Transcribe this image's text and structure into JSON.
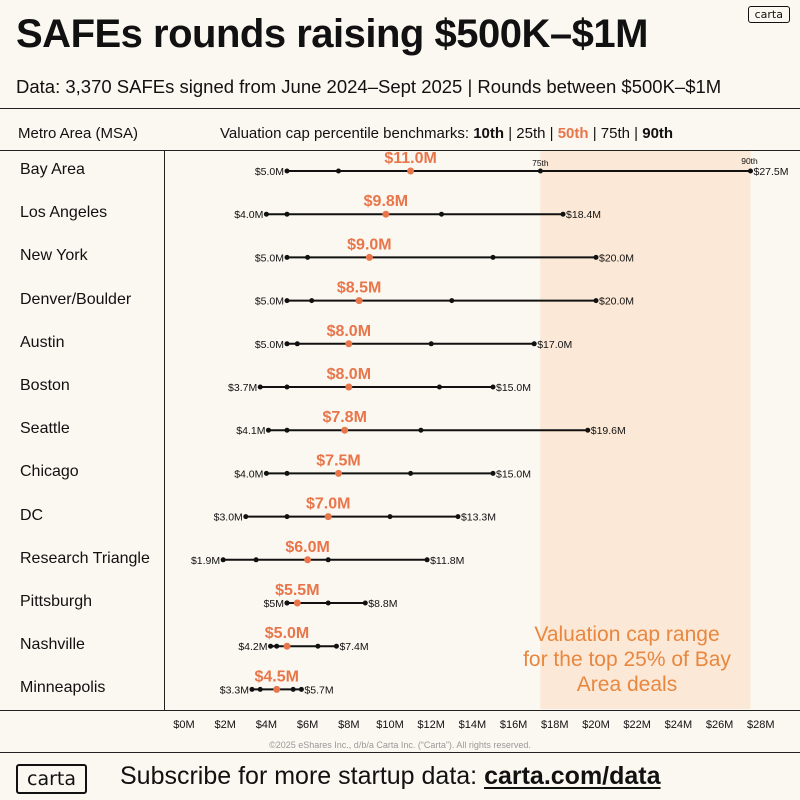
{
  "logo_text": "carta",
  "title": "SAFEs rounds raising $500K–$1M",
  "subtitle": "Data: 3,370 SAFEs signed from June 2024–Sept 2025 | Rounds between $500K–$1M",
  "header": {
    "left": "Metro Area (MSA)",
    "right_prefix": "Valuation cap percentile benchmarks: ",
    "p10": "10th",
    "p25": "25th",
    "p50": "50th",
    "p75": "75th",
    "p90": "90th",
    "sep": " | "
  },
  "shade_note": "Valuation cap range for the top 25% of Bay Area deals",
  "copyright": "©2025 eShares Inc., d/b/a Carta Inc. (“Carta”). All rights reserved.",
  "footer": {
    "logo_text": "carta",
    "text": "Subscribe for more startup data: ",
    "url": "carta.com/data"
  },
  "colors": {
    "accent": "#e8764a",
    "shade": "#fce3cf",
    "ink": "#111111"
  },
  "chart_data": {
    "type": "percentile range (dot plot)",
    "x_unit": "$M",
    "xlim": [
      0,
      28
    ],
    "x_ticks": [
      0,
      2,
      4,
      6,
      8,
      10,
      12,
      14,
      16,
      18,
      20,
      22,
      24,
      26,
      28
    ],
    "x_tick_labels": [
      "$0M",
      "$2M",
      "$4M",
      "$6M",
      "$8M",
      "$10M",
      "$12M",
      "$14M",
      "$16M",
      "$18M",
      "$20M",
      "$22M",
      "$24M",
      "$26M",
      "$28M"
    ],
    "shaded_range": [
      17.3,
      27.5
    ],
    "rows": [
      {
        "metro": "Bay Area",
        "p10": 5.0,
        "p25": 7.5,
        "p50": 11.0,
        "p75": 17.3,
        "p90": 27.5,
        "min_label": "$5.0M",
        "max_label": "$27.5M",
        "median_label": "$11.0M",
        "p75_note": "75th",
        "p90_note": "90th"
      },
      {
        "metro": "Los Angeles",
        "p10": 4.0,
        "p25": 5.0,
        "p50": 9.8,
        "p75": 12.5,
        "p90": 18.4,
        "min_label": "$4.0M",
        "max_label": "$18.4M",
        "median_label": "$9.8M"
      },
      {
        "metro": "New York",
        "p10": 5.0,
        "p25": 6.0,
        "p50": 9.0,
        "p75": 15.0,
        "p90": 20.0,
        "min_label": "$5.0M",
        "max_label": "$20.0M",
        "median_label": "$9.0M"
      },
      {
        "metro": "Denver/Boulder",
        "p10": 5.0,
        "p25": 6.2,
        "p50": 8.5,
        "p75": 13.0,
        "p90": 20.0,
        "min_label": "$5.0M",
        "max_label": "$20.0M",
        "median_label": "$8.5M"
      },
      {
        "metro": "Austin",
        "p10": 5.0,
        "p25": 5.5,
        "p50": 8.0,
        "p75": 12.0,
        "p90": 17.0,
        "min_label": "$5.0M",
        "max_label": "$17.0M",
        "median_label": "$8.0M"
      },
      {
        "metro": "Boston",
        "p10": 3.7,
        "p25": 5.0,
        "p50": 8.0,
        "p75": 12.4,
        "p90": 15.0,
        "min_label": "$3.7M",
        "max_label": "$15.0M",
        "median_label": "$8.0M"
      },
      {
        "metro": "Seattle",
        "p10": 4.1,
        "p25": 5.0,
        "p50": 7.8,
        "p75": 11.5,
        "p90": 19.6,
        "min_label": "$4.1M",
        "max_label": "$19.6M",
        "median_label": "$7.8M"
      },
      {
        "metro": "Chicago",
        "p10": 4.0,
        "p25": 5.0,
        "p50": 7.5,
        "p75": 11.0,
        "p90": 15.0,
        "min_label": "$4.0M",
        "max_label": "$15.0M",
        "median_label": "$7.5M"
      },
      {
        "metro": "DC",
        "p10": 3.0,
        "p25": 5.0,
        "p50": 7.0,
        "p75": 10.0,
        "p90": 13.3,
        "min_label": "$3.0M",
        "max_label": "$13.3M",
        "median_label": "$7.0M"
      },
      {
        "metro": "Research Triangle",
        "p10": 1.9,
        "p25": 3.5,
        "p50": 6.0,
        "p75": 7.0,
        "p90": 11.8,
        "min_label": "$1.9M",
        "max_label": "$11.8M",
        "median_label": "$6.0M"
      },
      {
        "metro": "Pittsburgh",
        "p10": 5.0,
        "p25": 5.0,
        "p50": 5.5,
        "p75": 7.0,
        "p90": 8.8,
        "min_label": "$5M",
        "max_label": "$8.8M",
        "median_label": "$5.5M"
      },
      {
        "metro": "Nashville",
        "p10": 4.2,
        "p25": 4.5,
        "p50": 5.0,
        "p75": 6.5,
        "p90": 7.4,
        "min_label": "$4.2M",
        "max_label": "$7.4M",
        "median_label": "$5.0M"
      },
      {
        "metro": "Minneapolis",
        "p10": 3.3,
        "p25": 3.7,
        "p50": 4.5,
        "p75": 5.3,
        "p90": 5.7,
        "min_label": "$3.3M",
        "max_label": "$5.7M",
        "median_label": "$4.5M"
      }
    ]
  }
}
